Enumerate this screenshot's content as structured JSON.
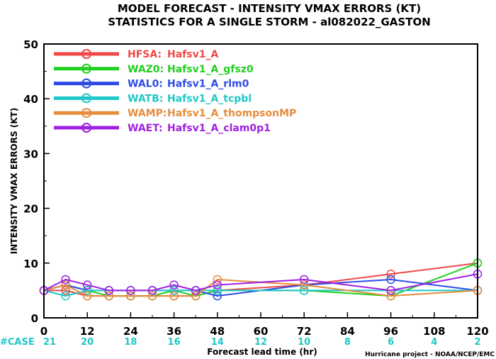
{
  "chart_data": {
    "type": "line",
    "title_line1": "MODEL FORECAST - INTENSITY VMAX ERRORS (KT)",
    "title_line2": "STATISTICS FOR A SINGLE STORM - al082022_GASTON",
    "xlabel": "Forecast lead time (hr)",
    "ylabel": "INTENSITY VMAX ERRORS (KT)",
    "xlim": [
      0,
      120
    ],
    "ylim": [
      0,
      50
    ],
    "x_ticks": [
      0,
      12,
      24,
      36,
      48,
      60,
      72,
      84,
      96,
      108,
      120
    ],
    "y_ticks": [
      0,
      10,
      20,
      30,
      40,
      50
    ],
    "case_label": "#CASE",
    "cases": [
      {
        "x": 0,
        "value": "21"
      },
      {
        "x": 12,
        "value": "20"
      },
      {
        "x": 24,
        "value": "18"
      },
      {
        "x": 36,
        "value": "16"
      },
      {
        "x": 48,
        "value": "14"
      },
      {
        "x": 60,
        "value": "12"
      },
      {
        "x": 72,
        "value": "10"
      },
      {
        "x": 84,
        "value": "8"
      },
      {
        "x": 96,
        "value": "6"
      },
      {
        "x": 108,
        "value": "4"
      },
      {
        "x": 120,
        "value": "2"
      }
    ],
    "credit": "Hurricane project - NOAA/NCEP/EMC",
    "legend_position": "top-left",
    "series": [
      {
        "name": "HFSA:",
        "desc": "Hafsv1_A",
        "color": "#f04848",
        "x": [
          0,
          6,
          12,
          18,
          24,
          30,
          36,
          42,
          48,
          72,
          96,
          120
        ],
        "y": [
          5,
          5,
          4,
          4,
          4,
          4,
          4,
          4,
          5,
          6,
          8,
          10
        ]
      },
      {
        "name": "WAZ0:",
        "desc": "Hafsv1_A_gfsz0",
        "color": "#22d022",
        "x": [
          0,
          6,
          12,
          18,
          24,
          30,
          36,
          42,
          48,
          72,
          96,
          120
        ],
        "y": [
          5,
          6,
          5,
          4,
          4,
          4,
          5,
          4,
          5,
          5,
          4,
          10
        ]
      },
      {
        "name": "WAL0:",
        "desc": "Hafsv1_A_rlm0",
        "color": "#2f4be6",
        "x": [
          0,
          6,
          12,
          18,
          24,
          30,
          36,
          42,
          48,
          72,
          96,
          120
        ],
        "y": [
          5,
          6,
          5,
          5,
          5,
          5,
          5,
          5,
          4,
          6,
          7,
          5
        ]
      },
      {
        "name": "WATB:",
        "desc": "Hafsv1_A_tcpbl",
        "color": "#1fc8c8",
        "x": [
          0,
          6,
          12,
          18,
          24,
          30,
          36,
          42,
          48,
          72,
          96,
          120
        ],
        "y": [
          5,
          4,
          5,
          5,
          5,
          5,
          5,
          5,
          5,
          5,
          5,
          5
        ]
      },
      {
        "name": "WAMP:",
        "desc": "Hafsv1_A_thompsonMP",
        "color": "#e68c3c",
        "x": [
          0,
          6,
          12,
          18,
          24,
          30,
          36,
          42,
          48,
          72,
          96,
          120
        ],
        "y": [
          5,
          6,
          4,
          4,
          4,
          4,
          4,
          4,
          7,
          6,
          4,
          5
        ]
      },
      {
        "name": "WAET:",
        "desc": "Hafsv1_A_clam0p1",
        "color": "#a020e0",
        "x": [
          0,
          6,
          12,
          18,
          24,
          30,
          36,
          42,
          48,
          72,
          96,
          120
        ],
        "y": [
          5,
          7,
          6,
          5,
          5,
          5,
          6,
          5,
          6,
          7,
          5,
          8
        ]
      }
    ]
  }
}
